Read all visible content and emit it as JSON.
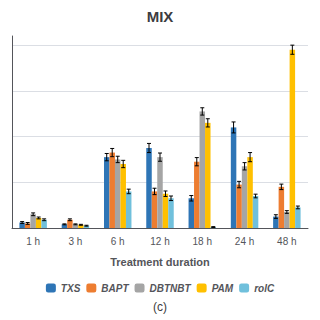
{
  "chart_data": {
    "type": "bar",
    "title": "MIX",
    "subtitle": "(c)",
    "xlabel": "Treatment duration",
    "categories": [
      "1 h",
      "3 h",
      "6 h",
      "12 h",
      "18 h",
      "24 h",
      "48 h"
    ],
    "series": [
      {
        "name": "TXS",
        "color": "#2E75B6",
        "values": [
          0.12,
          0.08,
          1.55,
          1.75,
          0.65,
          2.2,
          0.25
        ],
        "errors": [
          0.02,
          0.01,
          0.08,
          0.1,
          0.06,
          0.12,
          0.04
        ]
      },
      {
        "name": "BAPT",
        "color": "#ED7D31",
        "values": [
          0.1,
          0.18,
          1.65,
          0.8,
          1.45,
          0.95,
          0.9
        ],
        "errors": [
          0.02,
          0.02,
          0.09,
          0.07,
          0.09,
          0.07,
          0.06
        ]
      },
      {
        "name": "DBTNBT",
        "color": "#A5A5A5",
        "values": [
          0.3,
          0.08,
          1.5,
          1.55,
          2.55,
          1.35,
          0.35
        ],
        "errors": [
          0.03,
          0.01,
          0.07,
          0.09,
          0.08,
          0.08,
          0.03
        ]
      },
      {
        "name": "PAM",
        "color": "#FFC000",
        "values": [
          0.22,
          0.07,
          1.4,
          0.75,
          2.3,
          1.55,
          3.9
        ],
        "errors": [
          0.02,
          0.01,
          0.08,
          0.06,
          0.09,
          0.1,
          0.1
        ]
      },
      {
        "name": "rolC",
        "color": "#70C0DC",
        "values": [
          0.18,
          0.05,
          0.8,
          0.65,
          0.02,
          0.7,
          0.45
        ],
        "errors": [
          0.02,
          0.01,
          0.05,
          0.05,
          0.01,
          0.04,
          0.03
        ]
      }
    ],
    "ylim": [
      0,
      4.2
    ],
    "yticks": [
      0,
      1,
      2,
      3,
      4
    ],
    "grid": true,
    "legend": "bottom",
    "tick_labels": "x"
  }
}
